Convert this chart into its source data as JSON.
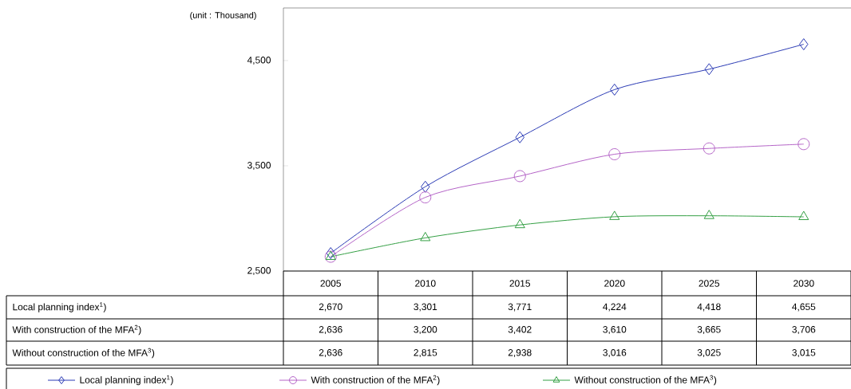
{
  "chart_data": {
    "type": "line",
    "annotations": [
      "(unit : Thousand)"
    ],
    "categories": [
      "2005",
      "2010",
      "2015",
      "2020",
      "2025",
      "2030"
    ],
    "series": [
      {
        "name": "Local planning index$^{1}$)",
        "color": "#2b3bb5",
        "marker": "diamond",
        "values": [
          2670,
          3301,
          3771,
          4224,
          4418,
          4655
        ],
        "value_labels": [
          "2,670",
          "3,301",
          "3,771",
          "4,224",
          "4,418",
          "4,655"
        ]
      },
      {
        "name": "With construction of the MFA$^{2}$)",
        "color": "#b565c8",
        "marker": "circle",
        "values": [
          2636,
          3200,
          3402,
          3610,
          3665,
          3706
        ],
        "value_labels": [
          "2,636",
          "3,200",
          "3,402",
          "3,610",
          "3,665",
          "3,706"
        ]
      },
      {
        "name": "Without construction of the MFA$^{3}$)",
        "color": "#35a045",
        "marker": "triangle",
        "values": [
          2636,
          2815,
          2938,
          3016,
          3025,
          3015
        ],
        "value_labels": [
          "2,636",
          "2,815",
          "2,938",
          "3,016",
          "3,025",
          "3,015"
        ]
      }
    ],
    "ylim": [
      2500,
      5000
    ],
    "yticks": [
      {
        "value": 2500,
        "label": "2,500"
      },
      {
        "value": 3500,
        "label": "3,500"
      },
      {
        "value": 4500,
        "label": "4,500"
      }
    ],
    "grid": false,
    "legend": "bottom",
    "line_style": "solid"
  }
}
